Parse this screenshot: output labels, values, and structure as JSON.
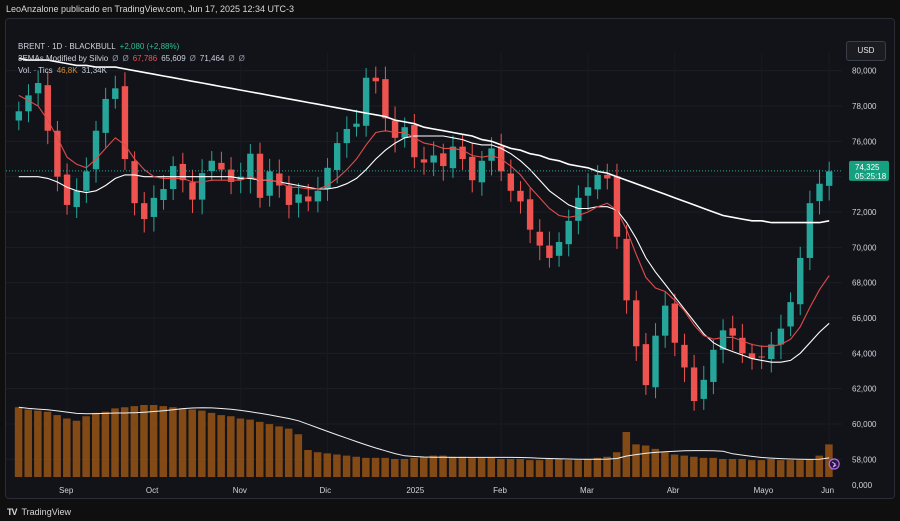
{
  "header": {
    "publisher_line": "LeoAnzalone publicado en TradingView.com, Jun 17, 2025 12:34 UTC-3",
    "currency_button": "USD"
  },
  "legend": {
    "symbol": "BRENT · 1D · BLACKBULL",
    "change": "+2,080 (+2,88%)",
    "study": "3EMAs Modified by Silvio",
    "study_values": [
      "Ø",
      "Ø",
      "67,786",
      "65,609",
      "Ø",
      "71,464",
      "Ø",
      "Ø"
    ],
    "volume_label": "Vol. · Tics",
    "volume_values": [
      "46,8K",
      "31,34K"
    ]
  },
  "footer": {
    "brand": "TradingView"
  },
  "colors": {
    "up": "#26a69a",
    "down": "#ef5350",
    "ema_fast": "#e04b4b",
    "ema_mid": "#ffffff",
    "ema_long": "#ffffff",
    "volume": "#8b4d16",
    "background": "#121319"
  },
  "chart_data": {
    "type": "candlestick",
    "title": "BRENT · 1D · BLACKBULL",
    "ylim": [
      57,
      81
    ],
    "y_ticks": [
      "80,000",
      "78,000",
      "76,000",
      "74,000",
      "72,000",
      "70,000",
      "68,000",
      "66,000",
      "64,000",
      "62,000",
      "60,000",
      "58,000",
      "0,000"
    ],
    "x_ticks": [
      "Sep",
      "Oct",
      "Nov",
      "Dic",
      "2025",
      "Feb",
      "Mar",
      "Abr",
      "Mayo",
      "Jun"
    ],
    "current_price_label": "74,325",
    "countdown_label": "05:25:18",
    "last_ema_label": "",
    "price_line": 74.325,
    "ohlc_close_series": [
      77.7,
      78.6,
      79.3,
      76.6,
      74.0,
      72.4,
      73.2,
      74.3,
      76.6,
      78.4,
      79.0,
      75.0,
      72.5,
      71.6,
      72.8,
      73.3,
      74.6,
      73.8,
      72.7,
      74.2,
      74.9,
      74.4,
      73.7,
      74.0,
      75.3,
      72.8,
      74.3,
      73.5,
      72.4,
      73.0,
      72.6,
      73.2,
      74.5,
      75.9,
      76.7,
      77.0,
      79.6,
      79.4,
      77.3,
      76.2,
      76.8,
      75.1,
      74.8,
      75.2,
      74.6,
      75.7,
      75.0,
      73.8,
      74.9,
      75.6,
      74.3,
      73.2,
      72.6,
      71.0,
      70.1,
      69.4,
      70.3,
      71.5,
      72.8,
      73.4,
      74.1,
      73.9,
      70.6,
      67.0,
      64.4,
      62.2,
      65.0,
      66.7,
      64.6,
      63.2,
      61.3,
      62.5,
      64.2,
      65.3,
      65.0,
      64.0,
      63.7,
      63.8,
      64.5,
      65.4,
      66.9,
      69.4,
      72.5,
      73.6,
      74.3
    ],
    "ema_fast_series": [
      78.6,
      78.3,
      78.0,
      77.2,
      76.2,
      75.1,
      74.7,
      74.5,
      75.0,
      75.6,
      76.2,
      75.8,
      75.0,
      74.4,
      74.0,
      73.9,
      73.9,
      73.9,
      73.7,
      73.7,
      73.8,
      73.8,
      73.8,
      73.8,
      74.0,
      73.8,
      73.8,
      73.7,
      73.4,
      73.4,
      73.3,
      73.3,
      73.5,
      73.9,
      74.4,
      75.0,
      75.8,
      76.5,
      76.6,
      76.5,
      76.5,
      76.2,
      75.9,
      75.8,
      75.6,
      75.6,
      75.5,
      75.2,
      75.1,
      75.2,
      75.0,
      74.6,
      74.1,
      73.4,
      72.8,
      72.2,
      71.8,
      71.7,
      71.8,
      72.0,
      72.3,
      72.5,
      72.1,
      71.0,
      69.6,
      68.3,
      67.7,
      67.5,
      67.0,
      66.4,
      65.6,
      65.0,
      64.8,
      64.9,
      64.9,
      64.7,
      64.5,
      64.4,
      64.4,
      64.5,
      64.8,
      65.5,
      66.6,
      67.6,
      68.4
    ],
    "ema_mid_series": [
      74.0,
      74.0,
      74.0,
      73.9,
      73.7,
      73.4,
      73.2,
      73.1,
      73.2,
      73.5,
      73.9,
      74.1,
      74.1,
      74.0,
      74.0,
      74.0,
      74.0,
      74.0,
      74.0,
      74.0,
      74.0,
      74.0,
      74.0,
      73.9,
      73.9,
      73.8,
      73.8,
      73.7,
      73.6,
      73.5,
      73.4,
      73.3,
      73.3,
      73.4,
      73.6,
      73.9,
      74.4,
      75.0,
      75.5,
      75.9,
      76.2,
      76.3,
      76.3,
      76.3,
      76.3,
      76.2,
      76.1,
      75.9,
      75.8,
      75.8,
      75.6,
      75.3,
      74.9,
      74.4,
      73.8,
      73.2,
      72.8,
      72.4,
      72.2,
      72.2,
      72.3,
      72.3,
      72.1,
      71.4,
      70.5,
      69.4,
      68.6,
      67.9,
      67.2,
      66.5,
      65.8,
      65.1,
      64.6,
      64.3,
      64.1,
      63.9,
      63.7,
      63.6,
      63.5,
      63.5,
      63.6,
      64.0,
      64.6,
      65.2,
      65.7
    ],
    "ema_long_series": [
      80.7,
      80.6,
      80.6,
      80.6,
      80.5,
      80.4,
      80.3,
      80.3,
      80.2,
      80.2,
      80.2,
      80.1,
      80.0,
      79.9,
      79.8,
      79.7,
      79.6,
      79.5,
      79.4,
      79.3,
      79.2,
      79.1,
      79.0,
      78.9,
      78.8,
      78.7,
      78.6,
      78.5,
      78.4,
      78.3,
      78.2,
      78.1,
      78.0,
      77.9,
      77.8,
      77.7,
      77.6,
      77.5,
      77.4,
      77.2,
      77.1,
      77.0,
      76.8,
      76.7,
      76.6,
      76.5,
      76.4,
      76.3,
      76.1,
      76.0,
      75.8,
      75.6,
      75.5,
      75.3,
      75.2,
      75.0,
      74.9,
      74.7,
      74.6,
      74.5,
      74.3,
      74.2,
      74.0,
      73.8,
      73.6,
      73.4,
      73.2,
      73.0,
      72.8,
      72.6,
      72.4,
      72.2,
      72.0,
      71.8,
      71.7,
      71.6,
      71.5,
      71.5,
      71.4,
      71.4,
      71.4,
      71.4,
      71.4,
      71.4,
      71.5
    ],
    "volume_series": [
      62,
      60,
      59,
      58,
      55,
      52,
      50,
      54,
      57,
      58,
      61,
      62,
      63,
      64,
      64,
      63,
      62,
      61,
      60,
      59,
      57,
      55,
      54,
      52,
      51,
      49,
      47,
      45,
      43,
      38,
      24,
      22,
      21,
      20,
      19,
      18,
      17,
      17,
      17,
      16,
      16,
      17,
      18,
      19,
      19,
      18,
      18,
      17,
      17,
      17,
      16,
      16,
      16,
      15,
      15,
      16,
      16,
      15,
      15,
      16,
      17,
      18,
      22,
      40,
      29,
      28,
      25,
      22,
      20,
      19,
      18,
      17,
      17,
      16,
      16,
      16,
      15,
      15,
      16,
      15,
      15,
      15,
      16,
      19,
      29
    ]
  }
}
